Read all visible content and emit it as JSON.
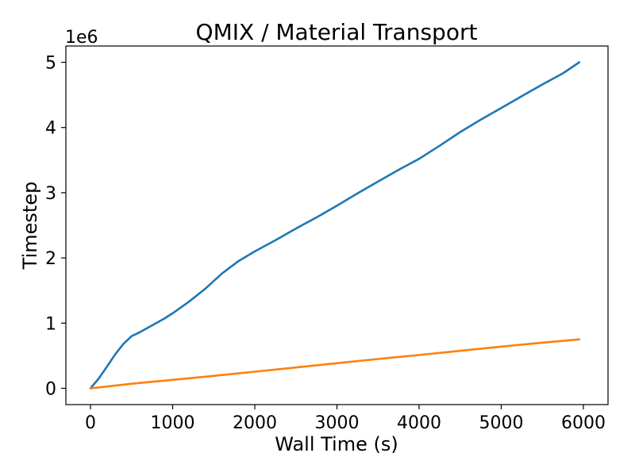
{
  "chart_data": {
    "type": "line",
    "title": "QMIX / Material Transport",
    "xlabel": "Wall Time (s)",
    "ylabel": "Timestep",
    "y_offset_label": "1e6",
    "xlim": [
      -300,
      6300
    ],
    "ylim": [
      -250000,
      5250000
    ],
    "xticks": [
      0,
      1000,
      2000,
      3000,
      4000,
      5000,
      6000
    ],
    "xtick_labels": [
      "0",
      "1000",
      "2000",
      "3000",
      "4000",
      "5000",
      "6000"
    ],
    "yticks": [
      0,
      1000000,
      2000000,
      3000000,
      4000000,
      5000000
    ],
    "ytick_labels": [
      "0",
      "1",
      "2",
      "3",
      "4",
      "5"
    ],
    "grid": false,
    "series": [
      {
        "color": "#1f77b4",
        "x": [
          0,
          100,
          200,
          300,
          400,
          500,
          600,
          700,
          800,
          900,
          1000,
          1200,
          1400,
          1600,
          1800,
          2000,
          2250,
          2500,
          2750,
          3000,
          3250,
          3500,
          3750,
          4000,
          4250,
          4500,
          4750,
          5000,
          5250,
          5500,
          5750,
          5950
        ],
        "y": [
          0,
          150000,
          330000,
          520000,
          680000,
          800000,
          860000,
          930000,
          1000000,
          1070000,
          1150000,
          1330000,
          1530000,
          1760000,
          1950000,
          2100000,
          2270000,
          2450000,
          2620000,
          2800000,
          2990000,
          3170000,
          3350000,
          3520000,
          3720000,
          3930000,
          4120000,
          4300000,
          4480000,
          4660000,
          4830000,
          5000000
        ]
      },
      {
        "color": "#ff7f0e",
        "x": [
          0,
          500,
          1000,
          1500,
          2000,
          2500,
          3000,
          3500,
          4000,
          4500,
          5000,
          5500,
          5950
        ],
        "y": [
          0,
          70000,
          130000,
          190000,
          255000,
          320000,
          385000,
          450000,
          510000,
          575000,
          640000,
          700000,
          750000
        ]
      }
    ]
  }
}
